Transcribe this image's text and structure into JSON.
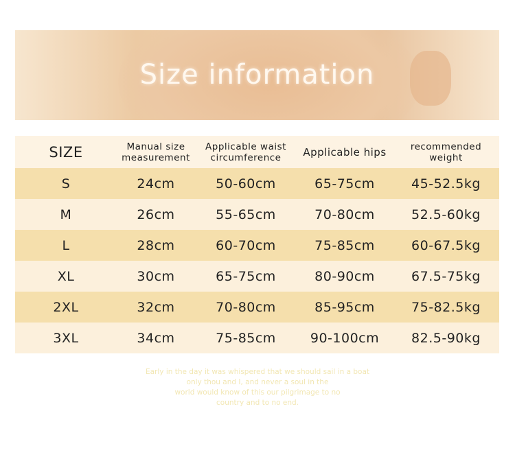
{
  "banner": {
    "title": "Size information"
  },
  "table": {
    "headers": [
      "SIZE",
      "Manual size measurement",
      "Applicable waist circumference",
      "Applicable hips",
      "recommended weight"
    ],
    "rows": [
      [
        "S",
        "24cm",
        "50-60cm",
        "65-75cm",
        "45-52.5kg"
      ],
      [
        "M",
        "26cm",
        "55-65cm",
        "70-80cm",
        "52.5-60kg"
      ],
      [
        "L",
        "28cm",
        "60-70cm",
        "75-85cm",
        "60-67.5kg"
      ],
      [
        "XL",
        "30cm",
        "65-75cm",
        "80-90cm",
        "67.5-75kg"
      ],
      [
        "2XL",
        "32cm",
        "70-80cm",
        "85-95cm",
        "75-82.5kg"
      ],
      [
        "3XL",
        "34cm",
        "75-85cm",
        "90-100cm",
        "82.5-90kg"
      ]
    ]
  },
  "footer": {
    "lines": [
      "Early in the day it was whispered that we should sail in a boat",
      "only thou and I, and never a soul in the",
      "world would know of this our pilgrimage to no",
      "country and to no end."
    ]
  },
  "colors": {
    "header_row": "#fdf3e3",
    "odd_row": "#f5dfac",
    "even_row": "#fcf0dc",
    "banner": "#eccaa3"
  }
}
